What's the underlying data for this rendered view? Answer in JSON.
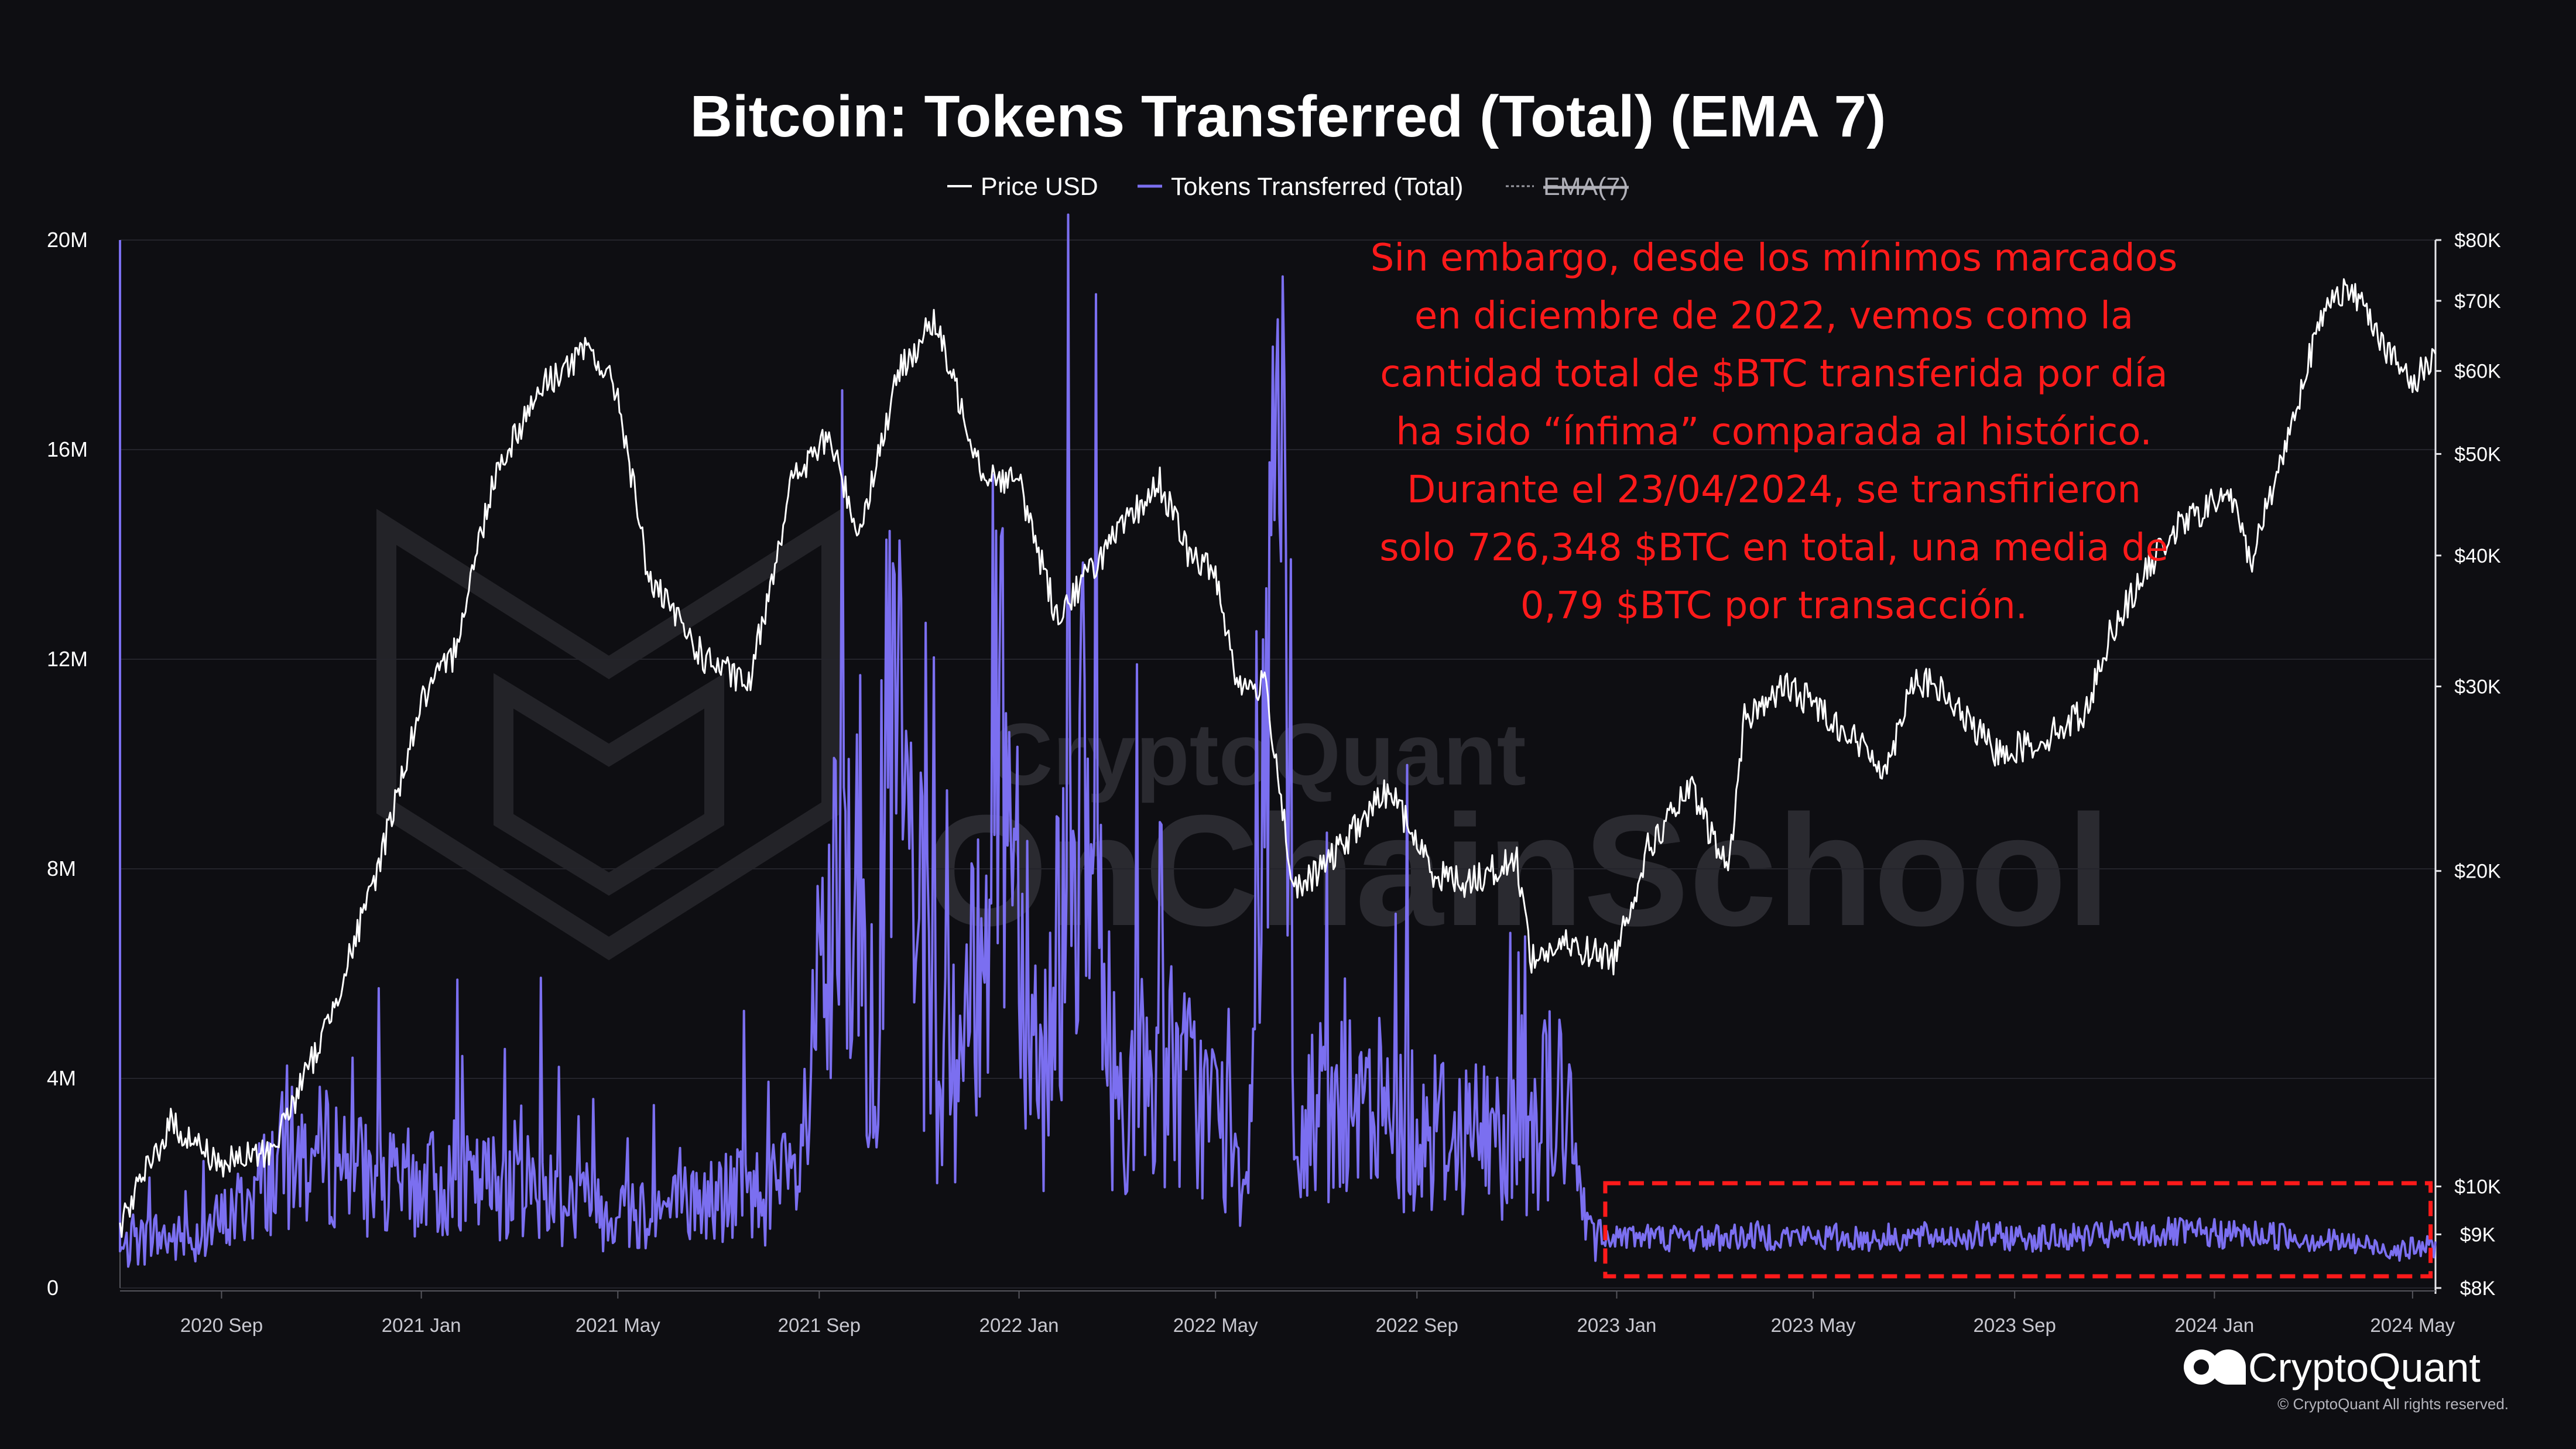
{
  "chart_data": {
    "type": "line",
    "title": "Bitcoin: Tokens Transferred (Total) (EMA 7)",
    "legend": [
      {
        "name": "Price USD",
        "color": "#ffffff",
        "struck": false
      },
      {
        "name": "Tokens Transferred (Total)",
        "color": "#7b6ff0",
        "struck": false
      },
      {
        "name": "EMA(7)",
        "color": "#9a9aa2",
        "struck": true
      }
    ],
    "x_range": [
      "2020-07-01",
      "2024-05-15"
    ],
    "x_ticks": [
      {
        "label": "2020 Sep",
        "date": "2020-09-01"
      },
      {
        "label": "2021 Jan",
        "date": "2021-01-01"
      },
      {
        "label": "2021 May",
        "date": "2021-05-01"
      },
      {
        "label": "2021 Sep",
        "date": "2021-09-01"
      },
      {
        "label": "2022 Jan",
        "date": "2022-01-01"
      },
      {
        "label": "2022 May",
        "date": "2022-05-01"
      },
      {
        "label": "2022 Sep",
        "date": "2022-09-01"
      },
      {
        "label": "2023 Jan",
        "date": "2023-01-01"
      },
      {
        "label": "2023 May",
        "date": "2023-05-01"
      },
      {
        "label": "2023 Sep",
        "date": "2023-09-01"
      },
      {
        "label": "2024 Jan",
        "date": "2024-01-01"
      },
      {
        "label": "2024 May",
        "date": "2024-05-01"
      }
    ],
    "left_axis": {
      "min": 0,
      "max": 20000000,
      "ticks": [
        {
          "label": "0",
          "value": 0
        },
        {
          "label": "4M",
          "value": 4000000
        },
        {
          "label": "8M",
          "value": 8000000
        },
        {
          "label": "12M",
          "value": 12000000
        },
        {
          "label": "16M",
          "value": 16000000
        },
        {
          "label": "20M",
          "value": 20000000
        }
      ]
    },
    "right_axis": {
      "scale": "log",
      "min": 8000,
      "max": 80000,
      "ticks": [
        {
          "label": "$80K",
          "value": 80000
        },
        {
          "label": "$70K",
          "value": 70000
        },
        {
          "label": "$60K",
          "value": 60000
        },
        {
          "label": "$50K",
          "value": 50000
        },
        {
          "label": "$40K",
          "value": 40000
        },
        {
          "label": "$30K",
          "value": 30000
        },
        {
          "label": "$20K",
          "value": 20000
        },
        {
          "label": "$10K",
          "value": 10000
        },
        {
          "label": "$9K",
          "value": 9000
        },
        {
          "label": "$8K",
          "value": 8000
        }
      ]
    },
    "series": [
      {
        "name": "Price USD",
        "axis": "right",
        "color": "#ffffff",
        "x": [
          "2020-07-01",
          "2020-08-01",
          "2020-09-01",
          "2020-10-01",
          "2020-11-01",
          "2020-12-01",
          "2021-01-01",
          "2021-01-20",
          "2021-02-15",
          "2021-03-15",
          "2021-04-14",
          "2021-05-01",
          "2021-05-20",
          "2021-06-22",
          "2021-07-20",
          "2021-08-15",
          "2021-09-07",
          "2021-09-25",
          "2021-10-20",
          "2021-11-10",
          "2021-12-10",
          "2022-01-01",
          "2022-01-24",
          "2022-02-20",
          "2022-03-28",
          "2022-04-15",
          "2022-05-01",
          "2022-05-15",
          "2022-06-01",
          "2022-06-18",
          "2022-07-10",
          "2022-08-15",
          "2022-09-10",
          "2022-10-01",
          "2022-11-01",
          "2022-11-10",
          "2022-12-01",
          "2022-12-30",
          "2023-01-20",
          "2023-02-15",
          "2023-03-10",
          "2023-03-20",
          "2023-04-14",
          "2023-05-01",
          "2023-06-15",
          "2023-06-30",
          "2023-07-15",
          "2023-08-20",
          "2023-09-15",
          "2023-10-15",
          "2023-10-30",
          "2023-12-05",
          "2024-01-10",
          "2024-01-23",
          "2024-02-15",
          "2024-02-28",
          "2024-03-14",
          "2024-04-01",
          "2024-04-15",
          "2024-05-01",
          "2024-05-15"
        ],
        "y": [
          9200,
          11500,
          10500,
          10800,
          13800,
          19000,
          29000,
          32000,
          48000,
          58000,
          63000,
          57000,
          38000,
          32000,
          30000,
          47000,
          52000,
          42000,
          60000,
          67000,
          48000,
          47000,
          35000,
          40000,
          47000,
          40000,
          38500,
          30000,
          30000,
          19000,
          20500,
          24000,
          20000,
          19500,
          20500,
          16500,
          17000,
          16500,
          21000,
          24000,
          20000,
          28000,
          30000,
          29000,
          25000,
          30500,
          30000,
          26000,
          26500,
          28500,
          34000,
          42000,
          46000,
          39500,
          52000,
          62000,
          72000,
          70000,
          63000,
          58000,
          63000
        ]
      },
      {
        "name": "Tokens Transferred (Total)",
        "axis": "left",
        "color": "#7b6ff0",
        "x": [
          "2020-07-01",
          "2020-07-02",
          "2020-07-20",
          "2020-08-10",
          "2020-08-30",
          "2020-09-15",
          "2020-10-10",
          "2020-11-15",
          "2020-12-05",
          "2021-01-01",
          "2021-02-01",
          "2021-03-01",
          "2021-04-01",
          "2021-05-01",
          "2021-06-01",
          "2021-07-15",
          "2021-08-01",
          "2021-08-20",
          "2021-09-02",
          "2021-09-25",
          "2021-10-02",
          "2021-10-15",
          "2021-11-12",
          "2021-12-01",
          "2021-12-20",
          "2022-01-15",
          "2022-02-05",
          "2022-03-01",
          "2022-04-01",
          "2022-05-01",
          "2022-05-20",
          "2022-06-08",
          "2022-06-18",
          "2022-07-01",
          "2022-08-01",
          "2022-09-01",
          "2022-10-01",
          "2022-11-01",
          "2022-11-28",
          "2022-12-10",
          "2022-12-20",
          "2023-01-05",
          "2023-02-15",
          "2023-04-01",
          "2023-06-01",
          "2023-08-01",
          "2023-10-01",
          "2023-12-01",
          "2024-02-15",
          "2024-04-23",
          "2024-05-15"
        ],
        "y": [
          20000000,
          700000,
          1000000,
          900000,
          1200000,
          1600000,
          2500000,
          2500000,
          1900000,
          2000000,
          1900000,
          2100000,
          1700000,
          1500000,
          1500000,
          1800000,
          1800000,
          2100000,
          5500000,
          8500000,
          3500000,
          11000000,
          3800000,
          4500000,
          11500000,
          3800000,
          10000000,
          3600000,
          4200000,
          3300000,
          2200000,
          17500000,
          2000000,
          3500000,
          3200000,
          3100000,
          3000000,
          2800000,
          3800000,
          1600000,
          1100000,
          1000000,
          950000,
          1000000,
          950000,
          1000000,
          950000,
          1050000,
          1000000,
          726348,
          800000
        ]
      }
    ],
    "annotation": {
      "lines": [
        "Sin embargo, desde los mínimos marcados",
        "en diciembre de 2022, vemos como la",
        "cantidad total de $BTC transferida por día",
        "ha sido “ínfima” comparada al histórico.",
        "Durante el 23/04/2024, se transfirieron",
        "solo 726,348 $BTC en total, una media de",
        "0,79 $BTC por transacción."
      ],
      "color": "#ff1a1a"
    },
    "highlight_box": {
      "x_start": "2022-12-25",
      "x_end": "2024-05-12",
      "y_min": 0,
      "y_max": 2000000,
      "color": "#ff1a1a",
      "style": "dashed"
    },
    "grid": {
      "horizontal": true,
      "vertical": false
    }
  },
  "watermark": {
    "line1": "CryptoQuant",
    "line2": "OnChainSchool"
  },
  "brand": {
    "name": "CryptoQuant",
    "copyright": "© CryptoQuant All rights reserved."
  },
  "colors": {
    "background": "#0e0e12",
    "price": "#ffffff",
    "tokens": "#7b6ff0",
    "annotation": "#ff1a1a"
  }
}
